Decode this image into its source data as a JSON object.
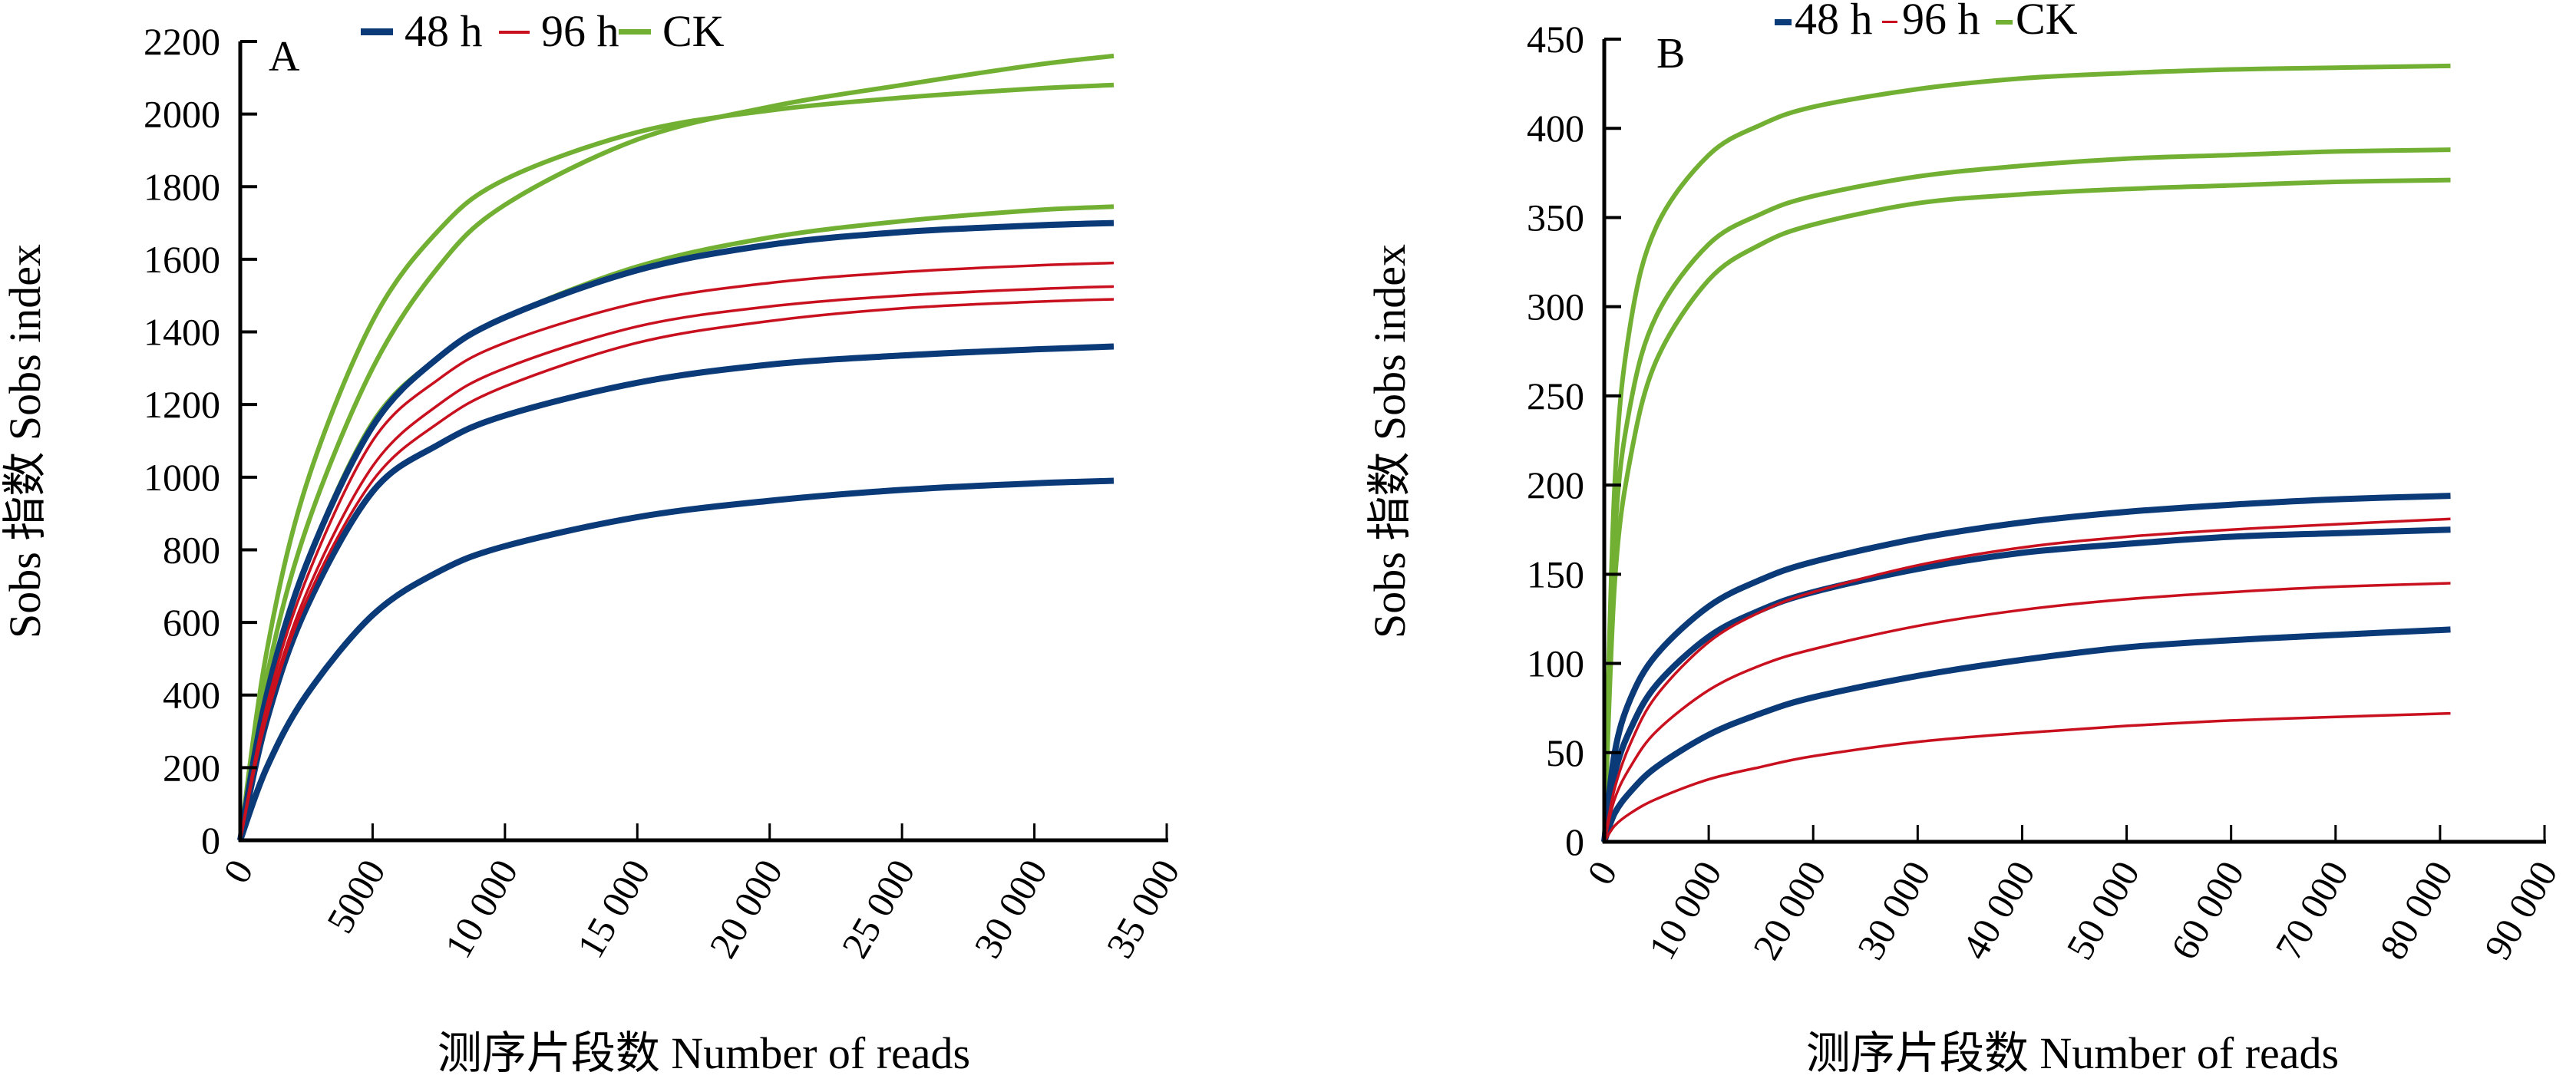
{
  "legend": [
    {
      "label": "48 h",
      "color": "#0b3a78"
    },
    {
      "label": "96 h",
      "color": "#c8101e"
    },
    {
      "label": "CK",
      "color": "#72b033"
    }
  ],
  "chart_data": [
    {
      "type": "line",
      "panel": "A",
      "xlabel": "测序片段数 Number of reads",
      "ylabel": "Sobs 指数 Sobs index",
      "xlim": [
        0,
        35000
      ],
      "ylim": [
        0,
        2200
      ],
      "x_ticks": [
        0,
        5000,
        10000,
        15000,
        20000,
        25000,
        30000,
        35000
      ],
      "x_tick_labels": [
        "0",
        "5000",
        "10 000",
        "15 000",
        "20 000",
        "25 000",
        "30 000",
        "35 000"
      ],
      "y_ticks": [
        0,
        200,
        400,
        600,
        800,
        1000,
        1200,
        1400,
        1600,
        1800,
        2000,
        2200
      ],
      "y_tick_labels": [
        "0",
        "200",
        "400",
        "600",
        "800",
        "1000",
        "1200",
        "1400",
        "1600",
        "1800",
        "2000",
        "2200"
      ],
      "legend_position": "top",
      "grid": false,
      "series": [
        {
          "name": "CK",
          "group": "CK",
          "x": [
            0,
            1000,
            2500,
            5000,
            7500,
            10000,
            15000,
            20000,
            25000,
            30000,
            33000
          ],
          "y": [
            0,
            450,
            860,
            1300,
            1580,
            1750,
            1930,
            2020,
            2080,
            2135,
            2160
          ]
        },
        {
          "name": "CK",
          "group": "CK",
          "x": [
            0,
            1000,
            2500,
            5000,
            7500,
            10000,
            15000,
            20000,
            25000,
            30000,
            33000
          ],
          "y": [
            0,
            520,
            980,
            1430,
            1680,
            1820,
            1950,
            2010,
            2045,
            2070,
            2080
          ]
        },
        {
          "name": "CK",
          "group": "CK",
          "x": [
            0,
            1000,
            2500,
            5000,
            7500,
            10000,
            15000,
            20000,
            25000,
            30000,
            33000
          ],
          "y": [
            0,
            380,
            760,
            1150,
            1330,
            1440,
            1580,
            1660,
            1705,
            1735,
            1745
          ]
        },
        {
          "name": "48 h",
          "group": "48 h",
          "x": [
            0,
            1000,
            2500,
            5000,
            7500,
            10000,
            15000,
            20000,
            25000,
            30000,
            33000
          ],
          "y": [
            0,
            400,
            760,
            1140,
            1330,
            1440,
            1570,
            1640,
            1675,
            1693,
            1700
          ]
        },
        {
          "name": "48 h",
          "group": "48 h",
          "x": [
            0,
            1000,
            2500,
            5000,
            7500,
            10000,
            15000,
            20000,
            25000,
            30000,
            33000
          ],
          "y": [
            0,
            330,
            640,
            960,
            1090,
            1170,
            1260,
            1310,
            1335,
            1352,
            1360
          ]
        },
        {
          "name": "48 h",
          "group": "48 h",
          "x": [
            0,
            1000,
            2500,
            5000,
            7500,
            10000,
            15000,
            20000,
            25000,
            30000,
            33000
          ],
          "y": [
            0,
            200,
            400,
            620,
            740,
            810,
            890,
            935,
            965,
            983,
            990
          ]
        },
        {
          "name": "96 h",
          "group": "96 h",
          "x": [
            0,
            1000,
            2500,
            5000,
            7500,
            10000,
            15000,
            20000,
            25000,
            30000,
            33000
          ],
          "y": [
            0,
            370,
            720,
            1100,
            1270,
            1370,
            1480,
            1535,
            1565,
            1583,
            1590
          ]
        },
        {
          "name": "96 h",
          "group": "96 h",
          "x": [
            0,
            1000,
            2500,
            5000,
            7500,
            10000,
            15000,
            20000,
            25000,
            30000,
            33000
          ],
          "y": [
            0,
            350,
            680,
            1030,
            1200,
            1300,
            1415,
            1470,
            1500,
            1518,
            1525
          ]
        },
        {
          "name": "96 h",
          "group": "96 h",
          "x": [
            0,
            1000,
            2500,
            5000,
            7500,
            10000,
            15000,
            20000,
            25000,
            30000,
            33000
          ],
          "y": [
            0,
            340,
            660,
            990,
            1150,
            1250,
            1370,
            1430,
            1465,
            1483,
            1490
          ]
        }
      ]
    },
    {
      "type": "line",
      "panel": "B",
      "xlabel": "测序片段数 Number of reads",
      "ylabel": "Sobs 指数 Sobs index",
      "xlim": [
        0,
        90000
      ],
      "ylim": [
        0,
        450
      ],
      "x_ticks": [
        0,
        10000,
        20000,
        30000,
        40000,
        50000,
        60000,
        70000,
        80000,
        90000
      ],
      "x_tick_labels": [
        "0",
        "10 000",
        "20 000",
        "30 000",
        "40 000",
        "50 000",
        "60 000",
        "70 000",
        "80 000",
        "90 000"
      ],
      "y_ticks": [
        0,
        50,
        100,
        150,
        200,
        250,
        300,
        350,
        400,
        450
      ],
      "y_tick_labels": [
        "0",
        "50",
        "100",
        "150",
        "200",
        "250",
        "300",
        "350",
        "400",
        "450"
      ],
      "legend_position": "top",
      "grid": false,
      "series": [
        {
          "name": "CK",
          "group": "CK",
          "x": [
            0,
            1000,
            2500,
            5000,
            10000,
            15000,
            20000,
            30000,
            40000,
            50000,
            60000,
            70000,
            81000
          ],
          "y": [
            0,
            200,
            290,
            345,
            385,
            402,
            412,
            422,
            428,
            431,
            433,
            434,
            435
          ]
        },
        {
          "name": "CK",
          "group": "CK",
          "x": [
            0,
            1000,
            2500,
            5000,
            10000,
            15000,
            20000,
            30000,
            40000,
            50000,
            60000,
            70000,
            81000
          ],
          "y": [
            0,
            170,
            245,
            295,
            335,
            352,
            362,
            373,
            379,
            383,
            385,
            387,
            388
          ]
        },
        {
          "name": "CK",
          "group": "CK",
          "x": [
            0,
            1000,
            2500,
            5000,
            10000,
            15000,
            20000,
            30000,
            40000,
            50000,
            60000,
            70000,
            81000
          ],
          "y": [
            0,
            145,
            215,
            270,
            315,
            335,
            346,
            358,
            363,
            366,
            368,
            370,
            371
          ]
        },
        {
          "name": "48 h",
          "group": "48 h",
          "x": [
            0,
            1000,
            2500,
            5000,
            10000,
            15000,
            20000,
            30000,
            40000,
            50000,
            60000,
            70000,
            81000
          ],
          "y": [
            0,
            50,
            80,
            105,
            132,
            147,
            157,
            170,
            179,
            185,
            189,
            192,
            194
          ]
        },
        {
          "name": "48 h",
          "group": "48 h",
          "x": [
            0,
            1000,
            2500,
            5000,
            10000,
            15000,
            20000,
            30000,
            40000,
            50000,
            60000,
            70000,
            81000
          ],
          "y": [
            0,
            38,
            63,
            88,
            115,
            130,
            140,
            153,
            162,
            167,
            171,
            173,
            175
          ]
        },
        {
          "name": "48 h",
          "group": "48 h",
          "x": [
            0,
            1000,
            2500,
            5000,
            10000,
            15000,
            20000,
            30000,
            40000,
            50000,
            60000,
            70000,
            81000
          ],
          "y": [
            0,
            16,
            28,
            42,
            60,
            72,
            81,
            93,
            102,
            109,
            113,
            116,
            119
          ]
        },
        {
          "name": "96 h",
          "group": "96 h",
          "x": [
            0,
            1000,
            2500,
            5000,
            10000,
            15000,
            20000,
            30000,
            40000,
            50000,
            60000,
            70000,
            81000
          ],
          "y": [
            0,
            30,
            55,
            82,
            112,
            129,
            140,
            155,
            165,
            171,
            175,
            178,
            181
          ]
        },
        {
          "name": "96 h",
          "group": "96 h",
          "x": [
            0,
            1000,
            2500,
            5000,
            10000,
            15000,
            20000,
            30000,
            40000,
            50000,
            60000,
            70000,
            81000
          ],
          "y": [
            0,
            24,
            42,
            62,
            85,
            99,
            108,
            121,
            130,
            136,
            140,
            143,
            145
          ]
        },
        {
          "name": "96 h",
          "group": "96 h",
          "x": [
            0,
            1000,
            2500,
            5000,
            10000,
            15000,
            20000,
            30000,
            40000,
            50000,
            60000,
            70000,
            81000
          ],
          "y": [
            0,
            9,
            16,
            24,
            35,
            42,
            48,
            56,
            61,
            65,
            68,
            70,
            72
          ]
        }
      ]
    }
  ]
}
